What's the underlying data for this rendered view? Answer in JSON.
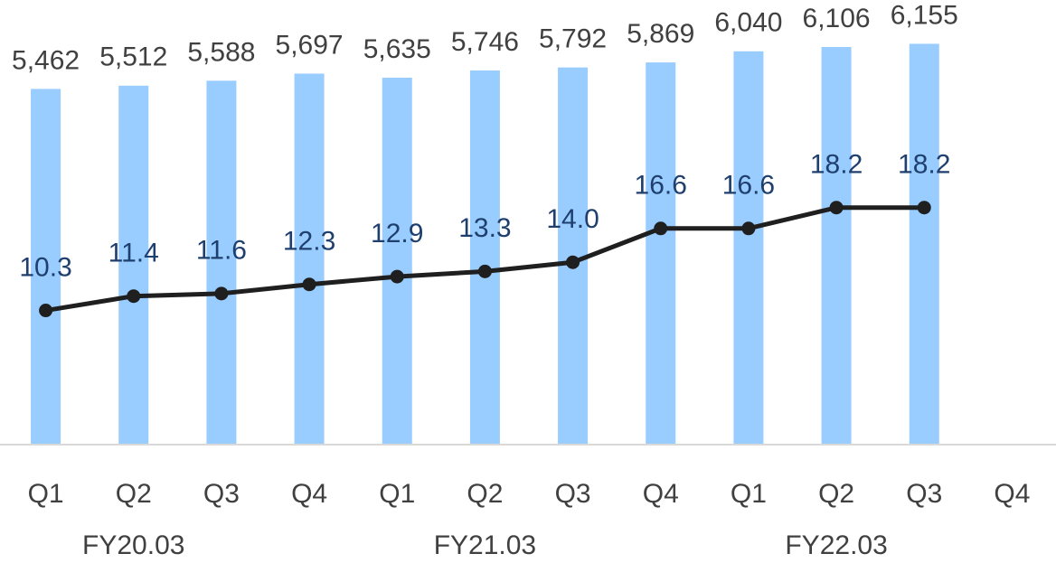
{
  "chart_data": {
    "type": "bar_line",
    "categories": [
      "Q1",
      "Q2",
      "Q3",
      "Q4",
      "Q1",
      "Q2",
      "Q3",
      "Q4",
      "Q1",
      "Q2",
      "Q3",
      "Q4"
    ],
    "group_labels": [
      "FY20.03",
      "FY21.03",
      "FY22.03"
    ],
    "series": [
      {
        "type": "bar",
        "color": "#99ccff",
        "values": [
          5462,
          5512,
          5588,
          5697,
          5635,
          5746,
          5792,
          5869,
          6040,
          6106,
          6155,
          null
        ],
        "value_labels": [
          "5,462",
          "5,512",
          "5,588",
          "5,697",
          "5,635",
          "5,746",
          "5,792",
          "5,869",
          "6,040",
          "6,106",
          "6,155",
          null
        ]
      },
      {
        "type": "line",
        "axis": "y2",
        "color": "#1f1f1f",
        "label_color": "#1f3f6e",
        "values": [
          10.3,
          11.4,
          11.6,
          12.3,
          12.9,
          13.3,
          14.0,
          16.6,
          16.6,
          18.2,
          18.2,
          null
        ],
        "value_labels": [
          "10.3",
          "11.4",
          "11.6",
          "12.3",
          "12.9",
          "13.3",
          "14.0",
          "16.6",
          "16.6",
          "18.2",
          "18.2",
          null
        ]
      }
    ],
    "ylim": [
      0,
      6800
    ],
    "y2lim": [
      0,
      34
    ],
    "grid": false
  }
}
